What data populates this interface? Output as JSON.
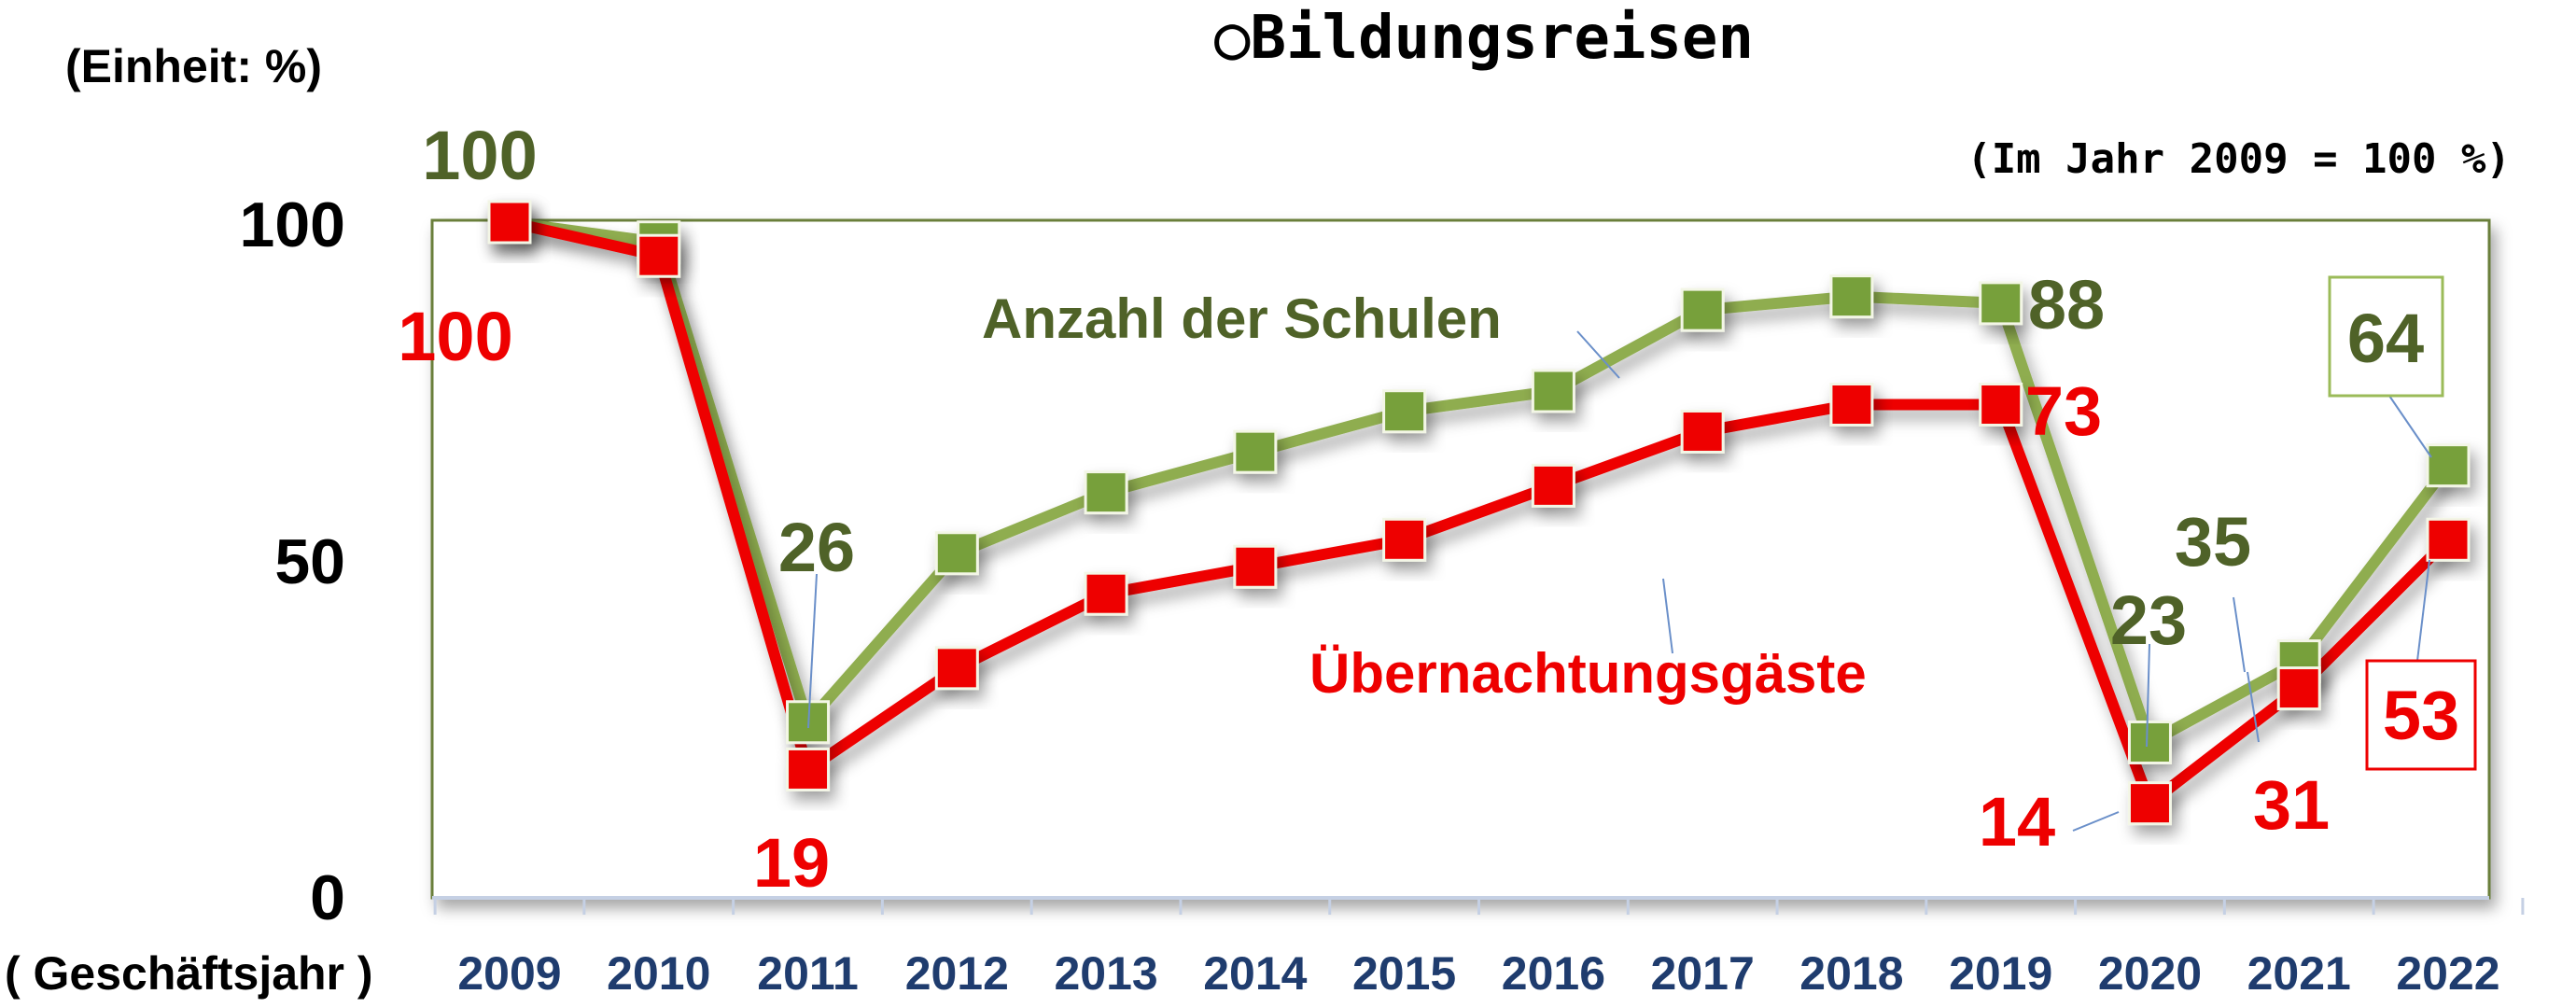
{
  "chart_data": {
    "type": "line",
    "title": "○Bildungsreisen",
    "unit_label": "(Einheit: %)",
    "note": "(Im Jahr 2009 = 100 %)",
    "xlabel": "( Geschäftsjahr )",
    "ylabel": "",
    "ylim": [
      0,
      100
    ],
    "yticks": [
      "0",
      "50",
      "100"
    ],
    "categories": [
      "2009",
      "2010",
      "2011",
      "2012",
      "2013",
      "2014",
      "2015",
      "2016",
      "2017",
      "2018",
      "2019",
      "2020",
      "2021",
      "2022"
    ],
    "series": [
      {
        "name": "Anzahl der Schulen",
        "color": "#8fad4f",
        "marker_color": "#77a03a",
        "label_color": "#4f6228",
        "values": [
          100,
          97,
          26,
          51,
          60,
          66,
          72,
          75,
          87,
          89,
          88,
          23,
          35,
          64
        ]
      },
      {
        "name": "Übernachtungsgäste",
        "color": "#ee0000",
        "marker_color": "#ee0000",
        "label_color": "#ee0000",
        "values": [
          100,
          95,
          19,
          34,
          45,
          49,
          53,
          61,
          69,
          73,
          73,
          14,
          31,
          53
        ]
      }
    ],
    "data_labels": {
      "green": [
        "100",
        "26",
        "88",
        "23",
        "35",
        "64"
      ],
      "red": [
        "100",
        "19",
        "73",
        "14",
        "31",
        "53"
      ]
    },
    "grid": false,
    "legend": "inline"
  }
}
